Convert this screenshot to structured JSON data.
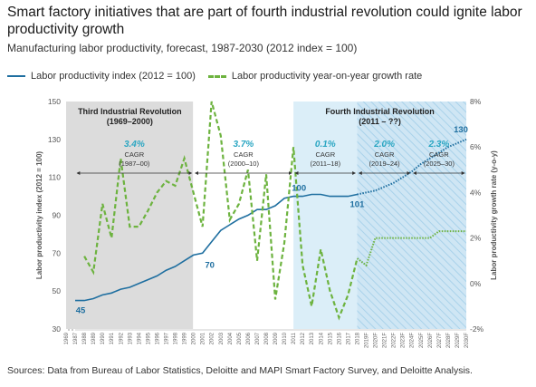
{
  "title": "Smart factory initiatives that are part of fourth industrial revolution could ignite labor productivity growth",
  "subtitle": "Manufacturing labor productivity, forecast, 1987-2030 (2012 index = 100)",
  "legend": {
    "index_label": "Labor productivity index (2012 = 100)",
    "growth_label": "Labor productivity year-on-year growth rate"
  },
  "source": "Sources: Data from Bureau of Labor Statistics, Deloitte and MAPI Smart Factory Survey, and Deloitte Analysis.",
  "colors": {
    "index_line": "#1f6fa0",
    "growth_line": "#6db33f",
    "third_rev_bg": "#dcdcdc",
    "fourth_rev_bg": "#dbeef8",
    "cagr_value": "#2aa6c2",
    "arrow": "#333333"
  },
  "chart_data": {
    "type": "line",
    "x_ticks": [
      "1969",
      "1987",
      "1988",
      "1989",
      "1990",
      "1991",
      "1992",
      "1993",
      "1994",
      "1995",
      "1996",
      "1997",
      "1998",
      "1999",
      "2000",
      "2001",
      "2002",
      "2003",
      "2004",
      "2005",
      "2006",
      "2007",
      "2008",
      "2009",
      "2010",
      "2011",
      "2012",
      "2013",
      "2014",
      "2015",
      "2016",
      "2017",
      "2018",
      "2019F",
      "2020F",
      "2021F",
      "2022F",
      "2023F",
      "2024F",
      "2025F",
      "2026F",
      "2027F",
      "2028F",
      "2029F",
      "2030F"
    ],
    "ylabel": "Labor productivity index (2012 = 100)",
    "y2label": "Labor productivity growth rate (y-o-y)",
    "y_ticks": [
      "30",
      "50",
      "70",
      "90",
      "110",
      "130",
      "150"
    ],
    "y2_ticks": [
      "-2%",
      "0%",
      "2%",
      "4%",
      "6%",
      "8%"
    ],
    "ylim": [
      30,
      150
    ],
    "y2lim": [
      -2,
      8
    ],
    "series": [
      {
        "name": "Labor productivity index (2012 = 100)",
        "axis": "left",
        "x": [
          "1987",
          "1988",
          "1989",
          "1990",
          "1991",
          "1992",
          "1993",
          "1994",
          "1995",
          "1996",
          "1997",
          "1998",
          "1999",
          "2000",
          "2001",
          "2002",
          "2003",
          "2004",
          "2005",
          "2006",
          "2007",
          "2008",
          "2009",
          "2010",
          "2011",
          "2012",
          "2013",
          "2014",
          "2015",
          "2016",
          "2017",
          "2018",
          "2019F",
          "2020F",
          "2021F",
          "2022F",
          "2023F",
          "2024F",
          "2025F",
          "2026F",
          "2027F",
          "2028F",
          "2029F",
          "2030F"
        ],
        "values": [
          45,
          45,
          46,
          48,
          49,
          51,
          52,
          54,
          56,
          58,
          61,
          63,
          66,
          69,
          70,
          76,
          82,
          85,
          88,
          90,
          93,
          93,
          95,
          99,
          100,
          100,
          101,
          101,
          100,
          100,
          100,
          101,
          102,
          103,
          105,
          107,
          110,
          113,
          117,
          120,
          123,
          126,
          128,
          130
        ],
        "forecast_from": "2018"
      },
      {
        "name": "Labor productivity year-on-year growth rate",
        "axis": "right",
        "x": [
          "1988",
          "1989",
          "1990",
          "1991",
          "1992",
          "1993",
          "1994",
          "1995",
          "1996",
          "1997",
          "1998",
          "1999",
          "2000",
          "2001",
          "2002",
          "2003",
          "2004",
          "2005",
          "2006",
          "2007",
          "2008",
          "2009",
          "2010",
          "2011",
          "2012",
          "2013",
          "2014",
          "2015",
          "2016",
          "2017",
          "2018",
          "2019F",
          "2020F",
          "2021F",
          "2022F",
          "2023F",
          "2024F",
          "2025F",
          "2026F",
          "2027F",
          "2028F",
          "2029F",
          "2030F"
        ],
        "values": [
          1.2,
          0.5,
          3.5,
          2.0,
          5.5,
          2.5,
          2.5,
          3.2,
          4.0,
          4.5,
          4.3,
          5.5,
          4.0,
          2.5,
          8.0,
          6.5,
          2.8,
          3.5,
          5.0,
          1.0,
          4.8,
          -0.7,
          1.8,
          6.0,
          0.8,
          -1.0,
          1.5,
          -0.3,
          -1.5,
          -0.5,
          1.1,
          0.8,
          2.0,
          2.0,
          2.0,
          2.0,
          2.0,
          2.0,
          2.0,
          2.3,
          2.3,
          2.3,
          2.3
        ],
        "forecast_from": "2018"
      }
    ],
    "point_labels": [
      {
        "x": "1987",
        "value": "45"
      },
      {
        "x": "2001",
        "value": "70"
      },
      {
        "x": "2012",
        "value": "100"
      },
      {
        "x": "2018",
        "value": "101"
      },
      {
        "x": "2030F",
        "value": "130"
      }
    ],
    "eras": [
      {
        "title": "Third Industrial Revolution",
        "range": "(1969–2000)",
        "from": "1969",
        "to": "2000"
      },
      {
        "title": "Fourth Industrial Revolution",
        "range": "(2011 – ??)",
        "from": "2011",
        "to": "2030F"
      }
    ],
    "cagr": [
      {
        "value": "3.4%",
        "label": "CAGR",
        "period": "(1987–00)",
        "from": "1987",
        "to": "2000"
      },
      {
        "value": "3.7%",
        "label": "CAGR",
        "period": "(2000–10)",
        "from": "2000",
        "to": "2011"
      },
      {
        "value": "0.1%",
        "label": "CAGR",
        "period": "(2011–18)",
        "from": "2011",
        "to": "2018"
      },
      {
        "value": "2.0%",
        "label": "CAGR",
        "period": "(2019–24)",
        "from": "2018",
        "to": "2024F"
      },
      {
        "value": "2.3%",
        "label": "CAGR",
        "period": "(2025–30)",
        "from": "2024F",
        "to": "2030F"
      }
    ]
  }
}
